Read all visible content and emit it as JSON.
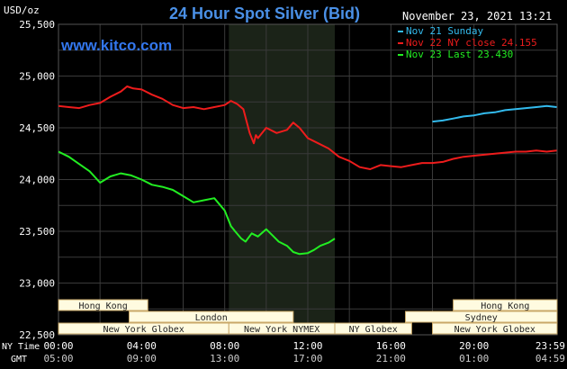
{
  "chart_data": {
    "type": "line",
    "title": "24 Hour Spot Silver (Bid)",
    "watermark": "www.kitco.com",
    "ylabel": "USD/oz",
    "timestamp": "November 23, 2021 13:21",
    "ylim": [
      22.5,
      25.5
    ],
    "y_ticks": [
      "25,500",
      "25,000",
      "24,500",
      "24,000",
      "23,500",
      "23,000",
      "22,500"
    ],
    "x_range_hours": [
      0,
      24
    ],
    "x_ticks": [
      "00:00",
      "04:00",
      "08:00",
      "12:00",
      "16:00",
      "20:00",
      "23:59"
    ],
    "x_ticks_gmt": [
      "05:00",
      "09:00",
      "13:00",
      "17:00",
      "21:00",
      "01:00",
      "04:59"
    ],
    "x_axis_label_ny": "NY Time",
    "x_axis_label_gmt": "GMT",
    "grid": true,
    "legend_position": "top-right",
    "shaded_session_hours": [
      8.2,
      13.3
    ],
    "series": [
      {
        "name": "Nov 21 Sunday",
        "color": "#33bbee",
        "x": [
          18.0,
          18.5,
          19.0,
          19.5,
          20.0,
          20.5,
          21.0,
          21.5,
          22.0,
          22.5,
          23.0,
          23.5,
          23.98
        ],
        "values": [
          24.56,
          24.57,
          24.59,
          24.61,
          24.62,
          24.64,
          24.65,
          24.67,
          24.68,
          24.69,
          24.7,
          24.71,
          24.7
        ]
      },
      {
        "name": "Nov 22 NY close 24.155",
        "color": "#ee1c1c",
        "x": [
          0,
          0.5,
          1.0,
          1.5,
          2.0,
          2.5,
          3.0,
          3.3,
          3.6,
          4.0,
          4.5,
          5.0,
          5.5,
          6.0,
          6.5,
          7.0,
          7.5,
          8.0,
          8.3,
          8.6,
          8.9,
          9.2,
          9.4,
          9.5,
          9.6,
          10.0,
          10.5,
          11.0,
          11.3,
          11.6,
          12.0,
          12.5,
          13.0,
          13.5,
          14.0,
          14.5,
          15.0,
          15.5,
          16.0,
          16.5,
          17.0,
          17.5,
          18.0,
          18.5,
          19.0,
          19.5,
          20.0,
          20.5,
          21.0,
          21.5,
          22.0,
          22.5,
          23.0,
          23.5,
          23.98
        ],
        "values": [
          24.71,
          24.7,
          24.69,
          24.72,
          24.74,
          24.8,
          24.85,
          24.9,
          24.88,
          24.87,
          24.82,
          24.78,
          24.72,
          24.69,
          24.7,
          24.68,
          24.7,
          24.72,
          24.76,
          24.73,
          24.68,
          24.45,
          24.35,
          24.43,
          24.4,
          24.5,
          24.45,
          24.48,
          24.55,
          24.5,
          24.4,
          24.35,
          24.3,
          24.22,
          24.18,
          24.12,
          24.1,
          24.14,
          24.13,
          24.12,
          24.14,
          24.16,
          24.16,
          24.17,
          24.2,
          24.22,
          24.23,
          24.24,
          24.25,
          24.26,
          24.27,
          24.27,
          24.28,
          24.27,
          24.28
        ]
      },
      {
        "name": "Nov 23 Last 23.430",
        "color": "#22ee22",
        "x": [
          0,
          0.5,
          1.0,
          1.5,
          2.0,
          2.5,
          3.0,
          3.5,
          4.0,
          4.5,
          5.0,
          5.5,
          6.0,
          6.5,
          7.0,
          7.5,
          8.0,
          8.3,
          8.5,
          8.8,
          9.0,
          9.3,
          9.6,
          10.0,
          10.3,
          10.6,
          11.0,
          11.3,
          11.6,
          12.0,
          12.3,
          12.6,
          13.0,
          13.3
        ],
        "values": [
          24.27,
          24.22,
          24.15,
          24.08,
          23.97,
          24.03,
          24.06,
          24.04,
          24.0,
          23.95,
          23.93,
          23.9,
          23.84,
          23.78,
          23.8,
          23.82,
          23.7,
          23.55,
          23.5,
          23.43,
          23.4,
          23.48,
          23.45,
          23.52,
          23.46,
          23.4,
          23.36,
          23.3,
          23.28,
          23.29,
          23.32,
          23.36,
          23.39,
          23.43
        ]
      }
    ],
    "sessions": [
      {
        "label": "Hong Kong",
        "start": 0.0,
        "end": 4.3,
        "row": 0
      },
      {
        "label": "London",
        "start": 3.4,
        "end": 11.3,
        "row": 1
      },
      {
        "label": "New York Globex",
        "start": 0.0,
        "end": 8.2,
        "row": 2
      },
      {
        "label": "New York NYMEX",
        "start": 8.2,
        "end": 13.3,
        "row": 2
      },
      {
        "label": "NY Globex",
        "start": 13.3,
        "end": 17.0,
        "row": 2
      },
      {
        "label": "Hong Kong",
        "start": 19.0,
        "end": 24.0,
        "row": 0
      },
      {
        "label": "Sydney",
        "start": 16.7,
        "end": 24.0,
        "row": 1
      },
      {
        "label": "New York Globex",
        "start": 18.0,
        "end": 24.0,
        "row": 2
      }
    ]
  },
  "colors": {
    "background": "#000000",
    "grid": "#3a3a3a",
    "axis_text": "#ffffff",
    "title": "#4a90e6",
    "watermark": "#3377ee",
    "shade": "#1b2318",
    "session_fill": "#fffbe0",
    "session_border": "#c9a868",
    "session_text": "#222222"
  }
}
